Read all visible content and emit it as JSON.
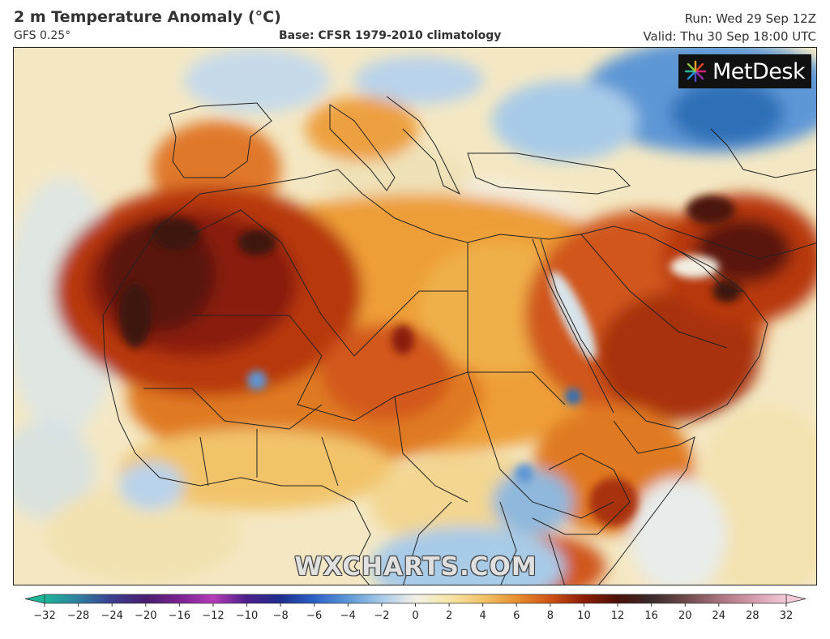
{
  "header": {
    "title": "2 m Temperature Anomaly (°C)",
    "model": "GFS 0.25°",
    "base": "Base: CFSR 1979-2010 climatology",
    "run": "Run: Wed 29 Sep 12Z",
    "valid": "Valid: Thu 30 Sep 18:00 UTC"
  },
  "logo": {
    "text": "MetDesk"
  },
  "watermark": "WXCHARTS.COM",
  "colorbar": {
    "ticks": [
      "−32",
      "−28",
      "−24",
      "−20",
      "−16",
      "−12",
      "−10",
      "−8",
      "−6",
      "−4",
      "−2",
      "0",
      "2",
      "4",
      "6",
      "8",
      "10",
      "12",
      "16",
      "20",
      "24",
      "28",
      "32"
    ],
    "colors": [
      "#1fb59a",
      "#2e7fa0",
      "#3b3f8f",
      "#4a1d6e",
      "#7a2391",
      "#b63cb8",
      "#4b1f8a",
      "#1f2d8f",
      "#2a62c8",
      "#5d97d6",
      "#a8cbe8",
      "#f3f1e8",
      "#f7e6a7",
      "#f2c46a",
      "#e88f2e",
      "#cf5416",
      "#8c1d06",
      "#4c120a",
      "#3a2a2a",
      "#6e4a4a",
      "#a8727c",
      "#d49aac",
      "#f2cad6"
    ],
    "colors_note": "",
    "arrow_left_color": "#1fb59a",
    "arrow_right_color": "#f2cad6"
  },
  "map": {
    "colors": {
      "ocean": "#f4e8c4",
      "cool": "#8fb8dc",
      "cold": "#2f6fb8",
      "warm": "#f0b04a",
      "hot": "#d0561a",
      "very_hot": "#8a1e08",
      "extreme": "#3d1510",
      "near_zero": "#f3efe2",
      "border": "#222222"
    }
  }
}
